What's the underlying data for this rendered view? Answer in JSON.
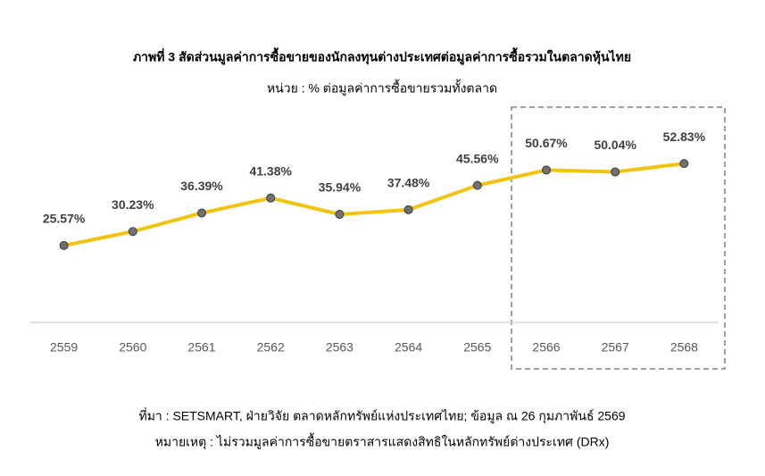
{
  "chart_data": {
    "type": "line",
    "title": "ภาพที่ 3 สัดส่วนมูลค่าการซื้อขายของนักลงทุนต่างประเทศต่อมูลค่าการซื้อรวมในตลาดหุ้นไทย",
    "subtitle": "หน่วย : % ต่อมูลค่าการซื้อขายรวมทั้งตลาด",
    "categories": [
      "2559",
      "2560",
      "2561",
      "2562",
      "2563",
      "2564",
      "2565",
      "2566",
      "2567",
      "2568"
    ],
    "values": [
      25.57,
      30.23,
      36.39,
      41.38,
      35.94,
      37.48,
      45.56,
      50.67,
      50.04,
      52.83
    ],
    "value_labels": [
      "25.57%",
      "30.23%",
      "36.39%",
      "41.38%",
      "35.94%",
      "37.48%",
      "45.56%",
      "50.67%",
      "50.04%",
      "52.83%"
    ],
    "color": "#f2c40f",
    "marker_color": "#707070",
    "ylim": [
      0,
      60
    ],
    "source": "ที่มา : SETSMART, ฝ่ายวิจัย ตลาดหลักทรัพย์แห่งประเทศไทย; ข้อมูล ณ 26 กุมภาพันธ์ 2569",
    "note": "หมายเหตุ : ไม่รวมมูลค่าการซื้อขายตราสารแสดงสิทธิในหลักทรัพย์ต่างประเทศ (DRx)"
  }
}
